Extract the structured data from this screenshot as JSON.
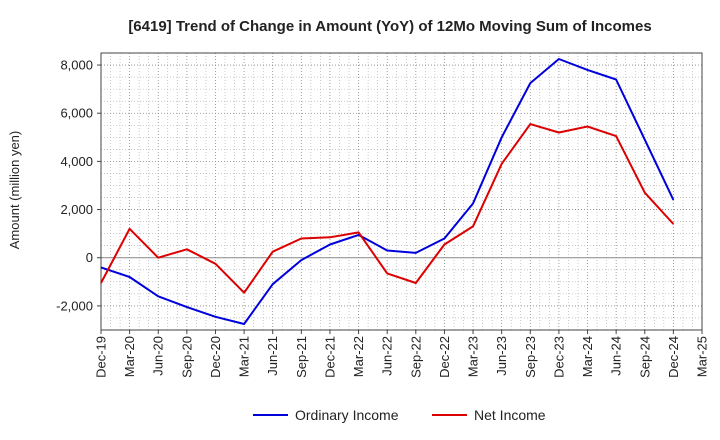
{
  "chart_data": {
    "type": "line",
    "title": "[6419]  Trend of Change in Amount (YoY) of 12Mo Moving Sum of Incomes",
    "xlabel": "",
    "ylabel": "Amount (million yen)",
    "ylim": [
      -3000,
      8500
    ],
    "yticks": [
      -2000,
      0,
      2000,
      4000,
      6000,
      8000
    ],
    "ytick_labels": [
      "-2,000",
      "0",
      "2,000",
      "4,000",
      "6,000",
      "8,000"
    ],
    "categories": [
      "Dec-19",
      "Mar-20",
      "Jun-20",
      "Sep-20",
      "Dec-20",
      "Mar-21",
      "Jun-21",
      "Sep-21",
      "Dec-21",
      "Mar-22",
      "Jun-22",
      "Sep-22",
      "Dec-22",
      "Mar-23",
      "Jun-23",
      "Sep-23",
      "Dec-23",
      "Mar-24",
      "Jun-24",
      "Sep-24",
      "Dec-24",
      "Mar-25"
    ],
    "grid": true,
    "legend_position": "bottom",
    "series": [
      {
        "name": "Ordinary Income",
        "color": "#0000dd",
        "values": [
          -400,
          -800,
          -1600,
          -2050,
          -2450,
          -2750,
          -1100,
          -100,
          550,
          950,
          300,
          200,
          800,
          2250,
          5000,
          7250,
          8250,
          7800,
          7400,
          4900,
          2400,
          null
        ]
      },
      {
        "name": "Net Income",
        "color": "#dd0000",
        "values": [
          -1050,
          1200,
          0,
          350,
          -250,
          -1450,
          250,
          800,
          850,
          1050,
          -650,
          -1050,
          550,
          1300,
          3900,
          5550,
          5200,
          5450,
          5050,
          2700,
          1400,
          null
        ]
      }
    ]
  }
}
